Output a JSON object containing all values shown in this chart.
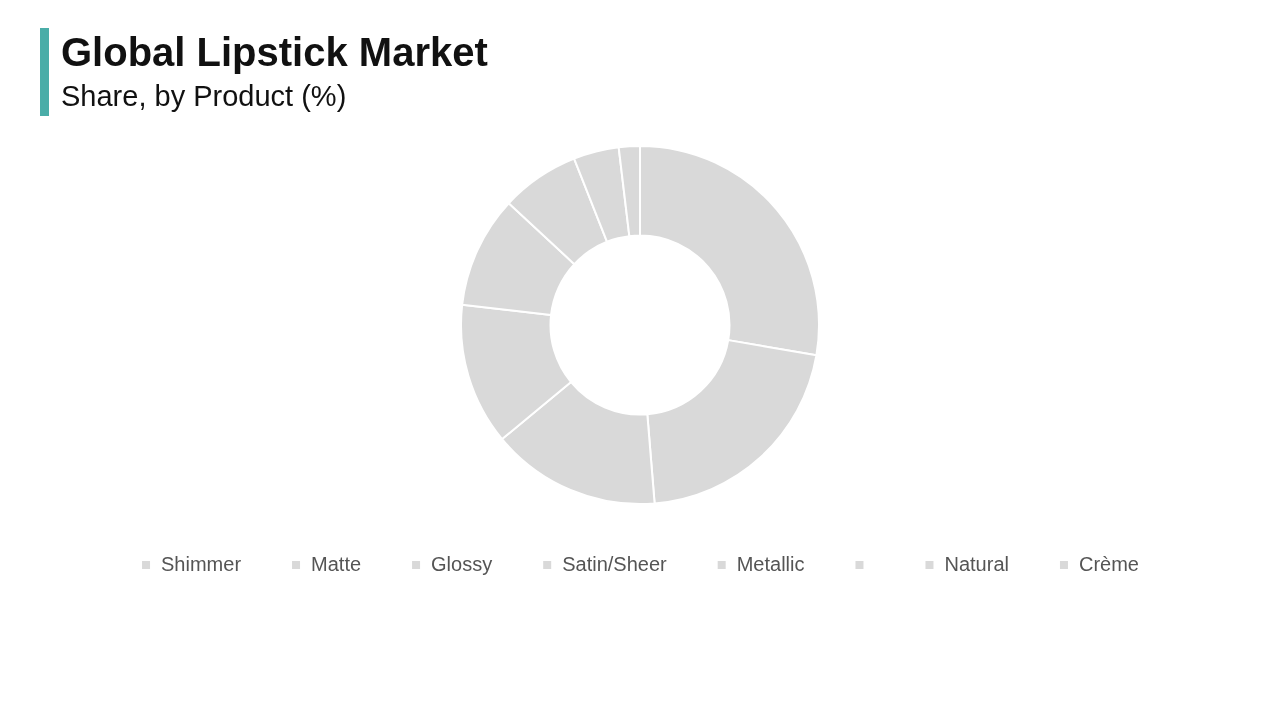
{
  "chart_data": {
    "type": "donut",
    "title": "Global Lipstick Market",
    "subtitle": "Share, by Product (%)",
    "categories": [
      "Shimmer",
      "Matte",
      "Glossy",
      "Satin/Sheer",
      "Metallic",
      null,
      "Natural",
      "Crème"
    ],
    "values": [
      27.7,
      21,
      15.3,
      12.8,
      10.1,
      7.1,
      4.1,
      1.9
    ],
    "colors": [
      "#d9d9d9",
      "#d9d9d9",
      "#d9d9d9",
      "#d9d9d9",
      "#d9d9d9",
      "#d9d9d9",
      "#d9d9d9",
      "#d9d9d9"
    ],
    "legend": "bottom"
  }
}
